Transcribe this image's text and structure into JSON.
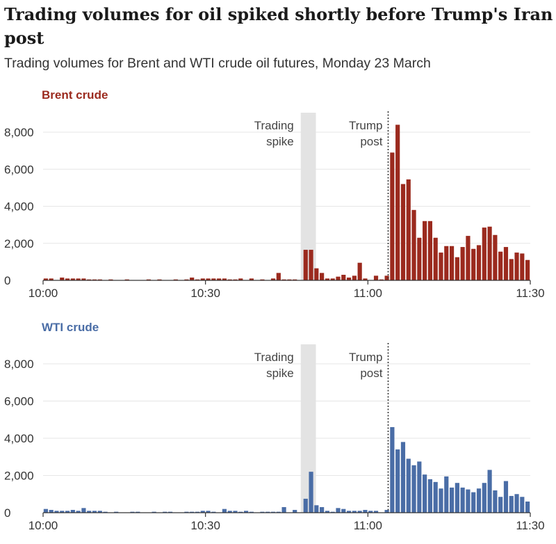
{
  "title": "Trading volumes for oil spiked shortly before Trump's Iran post",
  "subtitle": "Trading volumes for Brent and WTI crude oil futures, Monday 23 March",
  "chart_data": [
    {
      "type": "bar",
      "name": "Brent crude",
      "color": "#9b2a1e",
      "x_start": "10:00",
      "x_end": "11:30",
      "bin": "1 minute",
      "xticks": [
        "10:00",
        "10:30",
        "11:00",
        "11:30"
      ],
      "yticks": [
        "0",
        "2,000",
        "4,000",
        "6,000",
        "8,000"
      ],
      "ylim": [
        0,
        8000
      ],
      "grid": true,
      "annotations": {
        "spike": [
          "Trading",
          "spike"
        ],
        "spike_start": "10:48",
        "spike_end": "10:50",
        "post": [
          "Trump",
          "post"
        ],
        "post_time": "11:04"
      },
      "values": [
        100,
        100,
        0,
        150,
        100,
        100,
        100,
        100,
        50,
        50,
        50,
        0,
        50,
        0,
        0,
        50,
        0,
        0,
        0,
        50,
        0,
        50,
        0,
        0,
        50,
        0,
        50,
        150,
        50,
        100,
        100,
        100,
        100,
        100,
        50,
        50,
        100,
        0,
        100,
        0,
        50,
        0,
        100,
        400,
        50,
        50,
        50,
        0,
        1650,
        1650,
        650,
        400,
        100,
        100,
        200,
        300,
        150,
        250,
        950,
        100,
        0,
        250,
        50,
        250,
        6900,
        8400,
        5200,
        5450,
        3800,
        2300,
        3200,
        3200,
        2300,
        1500,
        1850,
        1850,
        1250,
        1800,
        2400,
        1700,
        1900,
        2850,
        2900,
        2450,
        1550,
        1800,
        1150,
        1500,
        1450,
        1100
      ]
    },
    {
      "type": "bar",
      "name": "WTI crude",
      "color": "#4a6da6",
      "x_start": "10:00",
      "x_end": "11:30",
      "bin": "1 minute",
      "xticks": [
        "10:00",
        "10:30",
        "11:00",
        "11:30"
      ],
      "yticks": [
        "0",
        "2,000",
        "4,000",
        "6,000",
        "8,000"
      ],
      "ylim": [
        0,
        8000
      ],
      "grid": true,
      "annotations": {
        "spike": [
          "Trading",
          "spike"
        ],
        "spike_start": "10:48",
        "spike_end": "10:50",
        "post": [
          "Trump",
          "post"
        ],
        "post_time": "11:04"
      },
      "values": [
        200,
        150,
        100,
        100,
        100,
        150,
        100,
        250,
        100,
        100,
        100,
        50,
        0,
        50,
        0,
        0,
        50,
        50,
        0,
        0,
        50,
        0,
        50,
        50,
        0,
        0,
        50,
        50,
        50,
        100,
        100,
        50,
        0,
        200,
        100,
        100,
        50,
        100,
        50,
        0,
        50,
        50,
        50,
        50,
        300,
        0,
        150,
        0,
        750,
        2200,
        400,
        300,
        100,
        50,
        250,
        200,
        100,
        100,
        100,
        150,
        100,
        100,
        0,
        150,
        4600,
        3400,
        3800,
        2900,
        2550,
        2750,
        2050,
        1800,
        1650,
        1300,
        1950,
        1350,
        1600,
        1350,
        1250,
        1100,
        1300,
        1600,
        2300,
        1200,
        850,
        1700,
        900,
        1000,
        850,
        600
      ]
    }
  ]
}
